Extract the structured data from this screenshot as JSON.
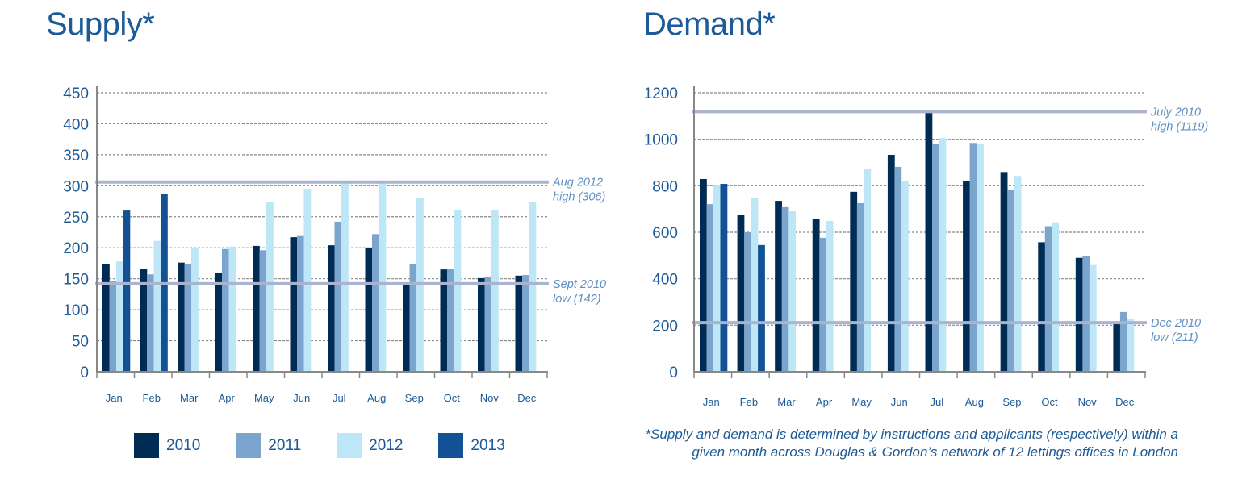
{
  "colors": {
    "2010": "#002b52",
    "2011": "#7ba5cc",
    "2012": "#bde6f7",
    "2013": "#115194",
    "reference_line": "#aab4d0",
    "axis": "#888888",
    "grid": "#888888",
    "text": "#1d5a98",
    "annotation": "#5f8fc0"
  },
  "legend": [
    {
      "name": "2010",
      "label": "2010"
    },
    {
      "name": "2011",
      "label": "2011"
    },
    {
      "name": "2012",
      "label": "2012"
    },
    {
      "name": "2013",
      "label": "2013"
    }
  ],
  "footnote": {
    "line1": "*Supply and demand is determined by instructions and applicants (respectively) within a",
    "line2": "given month across Douglas & Gordon’s network of 12 lettings offices in London"
  },
  "chart_data": [
    {
      "id": "supply",
      "type": "bar",
      "title": "Supply*",
      "xlabel": "",
      "ylabel": "",
      "ylim": [
        0,
        450
      ],
      "yticks": [
        0,
        50,
        100,
        150,
        200,
        250,
        300,
        350,
        400,
        450
      ],
      "grid": true,
      "categories": [
        "Jan",
        "Feb",
        "Mar",
        "Apr",
        "May",
        "Jun",
        "Jul",
        "Aug",
        "Sep",
        "Oct",
        "Nov",
        "Dec"
      ],
      "series": [
        {
          "name": "2010",
          "values": [
            173,
            166,
            176,
            160,
            203,
            217,
            204,
            199,
            142,
            165,
            151,
            155
          ]
        },
        {
          "name": "2011",
          "values": [
            146,
            157,
            174,
            198,
            196,
            219,
            242,
            222,
            173,
            166,
            153,
            156
          ]
        },
        {
          "name": "2012",
          "values": [
            178,
            211,
            199,
            202,
            274,
            295,
            305,
            306,
            281,
            261,
            260,
            274
          ]
        },
        {
          "name": "2013",
          "values": [
            260,
            287,
            null,
            null,
            null,
            null,
            null,
            null,
            null,
            null,
            null,
            null
          ]
        }
      ],
      "reference_lines": [
        {
          "value": 306,
          "label_line1": "Aug 2012",
          "label_line2": "high (306)"
        },
        {
          "value": 142,
          "label_line1": "Sept 2010",
          "label_line2": "low (142)"
        }
      ],
      "legend_position": "bottom"
    },
    {
      "id": "demand",
      "type": "bar",
      "title": "Demand*",
      "xlabel": "",
      "ylabel": "",
      "ylim": [
        0,
        1200
      ],
      "yticks": [
        0,
        200,
        400,
        600,
        800,
        1000,
        1200
      ],
      "grid": true,
      "categories": [
        "Jan",
        "Feb",
        "Mar",
        "Apr",
        "May",
        "Jun",
        "Jul",
        "Aug",
        "Sep",
        "Oct",
        "Nov",
        "Dec"
      ],
      "series": [
        {
          "name": "2010",
          "values": [
            829,
            673,
            735,
            659,
            774,
            933,
            1119,
            821,
            859,
            557,
            490,
            211
          ]
        },
        {
          "name": "2011",
          "values": [
            721,
            600,
            708,
            576,
            725,
            881,
            981,
            984,
            783,
            626,
            497,
            257
          ]
        },
        {
          "name": "2012",
          "values": [
            801,
            749,
            690,
            649,
            871,
            821,
            1005,
            981,
            842,
            643,
            459,
            226
          ]
        },
        {
          "name": "2013",
          "values": [
            808,
            545,
            null,
            null,
            null,
            null,
            null,
            null,
            null,
            null,
            null,
            null
          ]
        }
      ],
      "reference_lines": [
        {
          "value": 1119,
          "label_line1": "July 2010",
          "label_line2": "high (1119)"
        },
        {
          "value": 211,
          "label_line1": "Dec 2010",
          "label_line2": "low (211)"
        }
      ],
      "legend_position": "bottom (shared)"
    }
  ]
}
